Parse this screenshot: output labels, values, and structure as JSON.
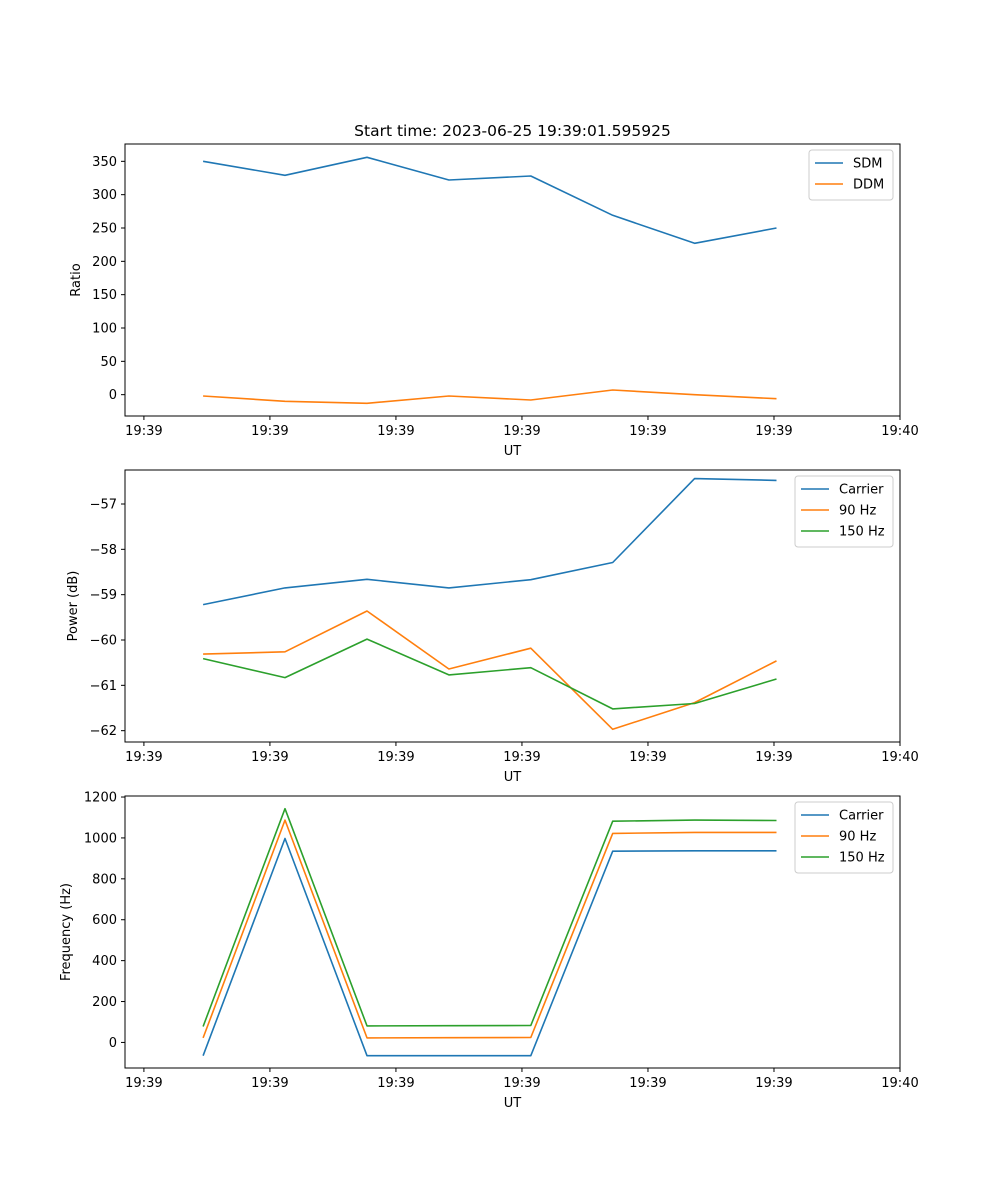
{
  "chart_data": [
    {
      "type": "line",
      "title": "Start time: 2023-06-25 19:39:01.595925",
      "xlabel": "UT",
      "ylabel": "Ratio",
      "x_ticks": [
        "19:39",
        "19:39",
        "19:39",
        "19:39",
        "19:39",
        "19:39",
        "19:40"
      ],
      "x_range": [
        -0.15,
        6.0
      ],
      "x": [
        0.47,
        1.12,
        1.77,
        2.42,
        3.07,
        3.72,
        4.37,
        5.02
      ],
      "ylim": [
        -32,
        376
      ],
      "y_ticks": [
        0,
        50,
        100,
        150,
        200,
        250,
        300,
        350
      ],
      "grid": false,
      "legend_position": "upper right",
      "series": [
        {
          "name": "SDM",
          "color": "#1f77b4",
          "values": [
            350,
            329,
            356,
            322,
            328,
            269,
            227,
            250
          ]
        },
        {
          "name": "DDM",
          "color": "#ff7f0e",
          "values": [
            -2,
            -10,
            -13,
            -2,
            -8,
            7,
            0,
            -6
          ]
        }
      ]
    },
    {
      "type": "line",
      "title": "",
      "xlabel": "UT",
      "ylabel": "Power (dB)",
      "x_ticks": [
        "19:39",
        "19:39",
        "19:39",
        "19:39",
        "19:39",
        "19:39",
        "19:40"
      ],
      "x_range": [
        -0.15,
        6.0
      ],
      "x": [
        0.47,
        1.12,
        1.77,
        2.42,
        3.07,
        3.72,
        4.37,
        5.02
      ],
      "ylim": [
        -62.25,
        -56.25
      ],
      "y_ticks": [
        -62,
        -61,
        -60,
        -59,
        -58,
        -57
      ],
      "grid": false,
      "legend_position": "upper right",
      "series": [
        {
          "name": "Carrier",
          "color": "#1f77b4",
          "values": [
            -59.22,
            -58.85,
            -58.66,
            -58.85,
            -58.67,
            -58.29,
            -56.44,
            -56.48
          ]
        },
        {
          "name": "90 Hz",
          "color": "#ff7f0e",
          "values": [
            -60.31,
            -60.26,
            -59.36,
            -60.64,
            -60.18,
            -61.97,
            -61.38,
            -60.46
          ]
        },
        {
          "name": "150 Hz",
          "color": "#2ca02c",
          "values": [
            -60.41,
            -60.83,
            -59.98,
            -60.77,
            -60.61,
            -61.52,
            -61.4,
            -60.86
          ]
        }
      ]
    },
    {
      "type": "line",
      "title": "",
      "xlabel": "UT",
      "ylabel": "Frequency (Hz)",
      "x_ticks": [
        "19:39",
        "19:39",
        "19:39",
        "19:39",
        "19:39",
        "19:39",
        "19:40"
      ],
      "x_range": [
        -0.15,
        6.0
      ],
      "x": [
        0.47,
        1.12,
        1.77,
        2.42,
        3.07,
        3.72,
        4.37,
        5.02
      ],
      "ylim": [
        -125,
        1205
      ],
      "y_ticks": [
        0,
        200,
        400,
        600,
        800,
        1000,
        1200
      ],
      "grid": false,
      "legend_position": "upper right",
      "series": [
        {
          "name": "Carrier",
          "color": "#1f77b4",
          "values": [
            -65,
            997,
            -65,
            -65,
            -65,
            935,
            937,
            937
          ]
        },
        {
          "name": "90 Hz",
          "color": "#ff7f0e",
          "values": [
            22,
            1087,
            22,
            23,
            24,
            1022,
            1027,
            1027
          ]
        },
        {
          "name": "150 Hz",
          "color": "#2ca02c",
          "values": [
            78,
            1143,
            81,
            82,
            83,
            1082,
            1087,
            1085
          ]
        }
      ]
    }
  ]
}
